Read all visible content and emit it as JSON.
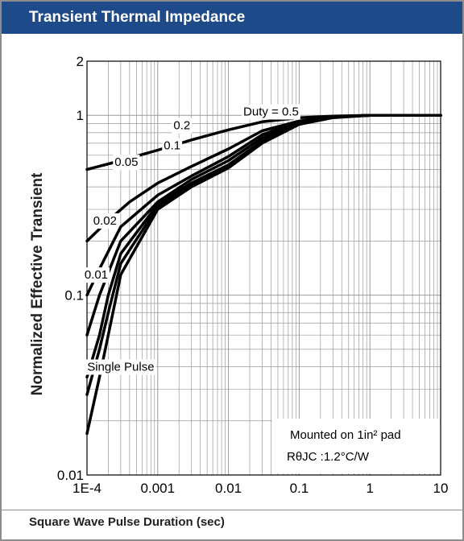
{
  "header": {
    "title": "Transient Thermal Impedance"
  },
  "footer": {
    "xlabel": "Square Wave Pulse Duration (sec)"
  },
  "colors": {
    "header_bg": "#1f4a8a",
    "curve": "#000000",
    "grid": "#9a9a9a"
  },
  "chart_data": {
    "type": "line",
    "title": "Transient Thermal Impedance",
    "xlabel": "Square Wave Pulse Duration (sec)",
    "ylabel": "Normalized Effective Transient",
    "x_scale": "log",
    "y_scale": "log",
    "xlim": [
      0.0001,
      10
    ],
    "ylim": [
      0.01,
      2
    ],
    "grid": true,
    "x_ticks": [
      {
        "value": 0.0001,
        "label": "1E-4"
      },
      {
        "value": 0.001,
        "label": "0.001"
      },
      {
        "value": 0.01,
        "label": "0.01"
      },
      {
        "value": 0.1,
        "label": "0.1"
      },
      {
        "value": 1,
        "label": "1"
      },
      {
        "value": 10,
        "label": "10"
      }
    ],
    "y_ticks": [
      {
        "value": 0.01,
        "label": "0.01"
      },
      {
        "value": 0.1,
        "label": "0.1"
      },
      {
        "value": 1,
        "label": "1"
      },
      {
        "value": 2,
        "label": "2"
      }
    ],
    "series": [
      {
        "name": "Duty = 0.5",
        "label_x": 0.04,
        "label_y": 1.05,
        "points": [
          [
            0.0001,
            0.5
          ],
          [
            0.0003,
            0.56
          ],
          [
            0.001,
            0.64
          ],
          [
            0.003,
            0.73
          ],
          [
            0.01,
            0.83
          ],
          [
            0.03,
            0.92
          ],
          [
            0.1,
            0.97
          ],
          [
            0.3,
            0.99
          ],
          [
            1,
            1.0
          ],
          [
            3,
            1.0
          ],
          [
            10,
            1.0
          ]
        ]
      },
      {
        "name": "0.2",
        "label_x": 0.0022,
        "label_y": 0.88,
        "points": [
          [
            0.0001,
            0.2
          ],
          [
            0.0002,
            0.26
          ],
          [
            0.0004,
            0.33
          ],
          [
            0.001,
            0.42
          ],
          [
            0.003,
            0.52
          ],
          [
            0.01,
            0.65
          ],
          [
            0.03,
            0.82
          ],
          [
            0.1,
            0.93
          ],
          [
            0.3,
            0.98
          ],
          [
            1,
            1.0
          ],
          [
            10,
            1.0
          ]
        ]
      },
      {
        "name": "0.1",
        "label_x": 0.0016,
        "label_y": 0.68,
        "points": [
          [
            0.0001,
            0.1
          ],
          [
            0.00015,
            0.14
          ],
          [
            0.0003,
            0.24
          ],
          [
            0.001,
            0.36
          ],
          [
            0.003,
            0.46
          ],
          [
            0.01,
            0.59
          ],
          [
            0.03,
            0.78
          ],
          [
            0.1,
            0.92
          ],
          [
            0.3,
            0.98
          ],
          [
            1,
            1.0
          ],
          [
            10,
            1.0
          ]
        ]
      },
      {
        "name": "0.05",
        "label_x": 0.00036,
        "label_y": 0.55,
        "points": [
          [
            0.0001,
            0.06
          ],
          [
            0.00015,
            0.1
          ],
          [
            0.0003,
            0.2
          ],
          [
            0.001,
            0.33
          ],
          [
            0.003,
            0.44
          ],
          [
            0.01,
            0.56
          ],
          [
            0.03,
            0.75
          ],
          [
            0.1,
            0.91
          ],
          [
            0.3,
            0.98
          ],
          [
            1,
            1.0
          ],
          [
            10,
            1.0
          ]
        ]
      },
      {
        "name": "0.02",
        "label_x": 0.00018,
        "label_y": 0.26,
        "points": [
          [
            0.0001,
            0.035
          ],
          [
            0.00015,
            0.06
          ],
          [
            0.0002,
            0.1
          ],
          [
            0.0003,
            0.17
          ],
          [
            0.001,
            0.32
          ],
          [
            0.003,
            0.42
          ],
          [
            0.01,
            0.53
          ],
          [
            0.03,
            0.72
          ],
          [
            0.1,
            0.9
          ],
          [
            0.3,
            0.98
          ],
          [
            1,
            1.0
          ],
          [
            10,
            1.0
          ]
        ]
      },
      {
        "name": "0.01",
        "label_x": 0.000135,
        "label_y": 0.13,
        "points": [
          [
            0.0001,
            0.028
          ],
          [
            0.00015,
            0.05
          ],
          [
            0.0002,
            0.08
          ],
          [
            0.0003,
            0.15
          ],
          [
            0.001,
            0.31
          ],
          [
            0.003,
            0.41
          ],
          [
            0.01,
            0.52
          ],
          [
            0.03,
            0.71
          ],
          [
            0.1,
            0.9
          ],
          [
            0.3,
            0.98
          ],
          [
            1,
            1.0
          ],
          [
            10,
            1.0
          ]
        ]
      },
      {
        "name": "Single Pulse",
        "label_x": 0.0003,
        "label_y": 0.04,
        "points": [
          [
            0.0001,
            0.017
          ],
          [
            0.00015,
            0.035
          ],
          [
            0.0002,
            0.06
          ],
          [
            0.0003,
            0.13
          ],
          [
            0.001,
            0.3
          ],
          [
            0.003,
            0.4
          ],
          [
            0.01,
            0.51
          ],
          [
            0.03,
            0.7
          ],
          [
            0.1,
            0.89
          ],
          [
            0.3,
            0.97
          ],
          [
            1,
            1.0
          ],
          [
            10,
            1.0
          ]
        ]
      }
    ],
    "annotation": {
      "line1": "Mounted on 1in² pad",
      "line2": "RθJC :1.2°C/W"
    }
  }
}
